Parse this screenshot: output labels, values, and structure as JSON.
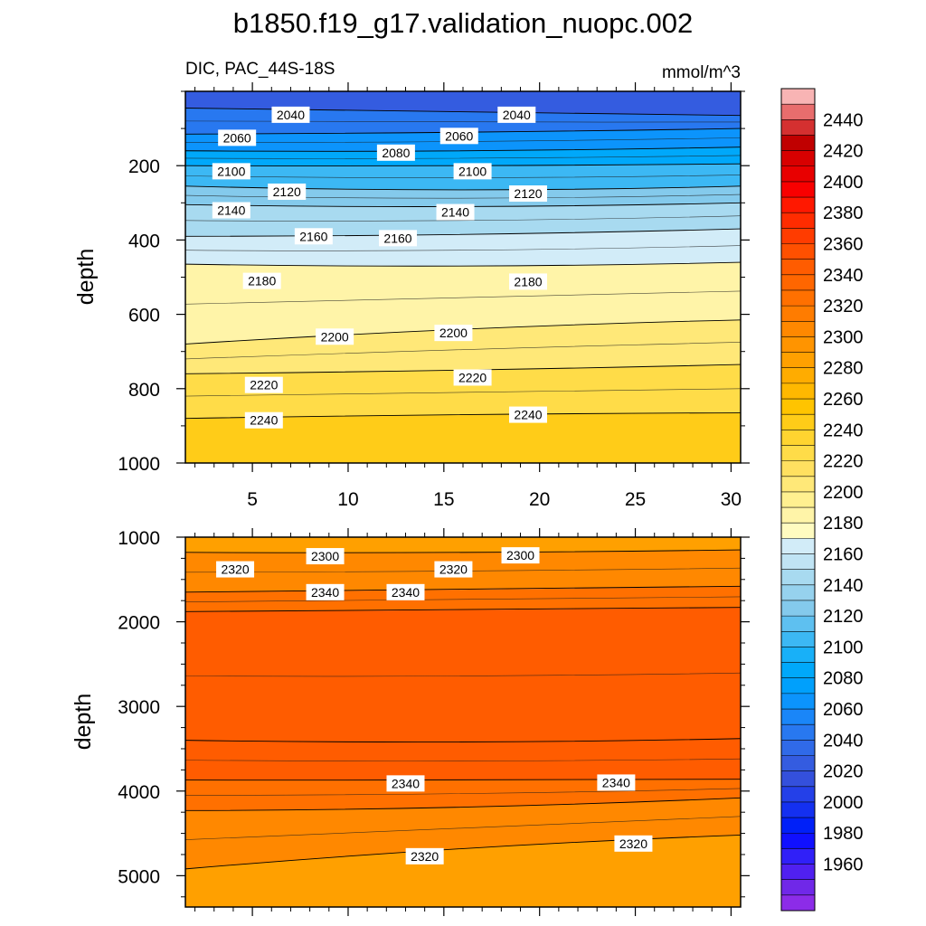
{
  "figure": {
    "title": "b1850.f19_g17.validation_nuopc.002"
  },
  "chart_data": [
    {
      "type": "contour",
      "panel": "upper",
      "title": "DIC, PAC_44S-18S",
      "units": "mmol/m^3",
      "ylabel": "depth",
      "xlabel": "",
      "xlim": [
        1.5,
        30.5
      ],
      "ylim": [
        1000,
        0
      ],
      "xticks": [
        5,
        10,
        15,
        20,
        25,
        30
      ],
      "yticks": [
        200,
        400,
        600,
        800,
        1000
      ],
      "contours": [
        {
          "level": 2040,
          "depths": [
            45,
            55,
            65
          ]
        },
        {
          "level": 2060,
          "depths": [
            115,
            110,
            100
          ]
        },
        {
          "level": 2080,
          "depths": [
            160,
            160,
            150
          ]
        },
        {
          "level": 2100,
          "depths": [
            200,
            200,
            195
          ]
        },
        {
          "level": 2120,
          "depths": [
            255,
            265,
            255
          ]
        },
        {
          "level": 2140,
          "depths": [
            305,
            310,
            300
          ]
        },
        {
          "level": 2160,
          "depths": [
            390,
            385,
            370
          ]
        },
        {
          "level": 2180,
          "depths": [
            465,
            470,
            460
          ]
        },
        {
          "level": 2200,
          "depths": [
            680,
            640,
            615
          ]
        },
        {
          "level": 2220,
          "depths": [
            760,
            750,
            735
          ]
        },
        {
          "level": 2240,
          "depths": [
            880,
            870,
            865
          ]
        }
      ],
      "labels": [
        {
          "text": "2040",
          "x": 7.0,
          "y": 63
        },
        {
          "text": "2040",
          "x": 18.8,
          "y": 63
        },
        {
          "text": "2060",
          "x": 4.2,
          "y": 125
        },
        {
          "text": "2060",
          "x": 15.8,
          "y": 120
        },
        {
          "text": "2080",
          "x": 12.5,
          "y": 165
        },
        {
          "text": "2100",
          "x": 3.9,
          "y": 215
        },
        {
          "text": "2100",
          "x": 16.5,
          "y": 215
        },
        {
          "text": "2120",
          "x": 6.8,
          "y": 270
        },
        {
          "text": "2120",
          "x": 19.4,
          "y": 275
        },
        {
          "text": "2140",
          "x": 3.9,
          "y": 320
        },
        {
          "text": "2140",
          "x": 15.6,
          "y": 325
        },
        {
          "text": "2160",
          "x": 8.2,
          "y": 390
        },
        {
          "text": "2160",
          "x": 12.6,
          "y": 395
        },
        {
          "text": "2180",
          "x": 5.5,
          "y": 510
        },
        {
          "text": "2180",
          "x": 19.4,
          "y": 512
        },
        {
          "text": "2200",
          "x": 9.3,
          "y": 660
        },
        {
          "text": "2200",
          "x": 15.5,
          "y": 650
        },
        {
          "text": "2220",
          "x": 5.6,
          "y": 790
        },
        {
          "text": "2220",
          "x": 16.5,
          "y": 770
        },
        {
          "text": "2240",
          "x": 5.6,
          "y": 885
        },
        {
          "text": "2240",
          "x": 19.4,
          "y": 870
        }
      ]
    },
    {
      "type": "contour",
      "panel": "lower",
      "title": "",
      "ylabel": "depth",
      "xlabel": "",
      "xlim": [
        1.5,
        30.5
      ],
      "ylim": [
        5370,
        1000
      ],
      "xticks": [],
      "yticks": [
        1000,
        2000,
        3000,
        4000,
        5000
      ],
      "contours": [
        {
          "level": 2300,
          "depths": [
            1180,
            1180,
            1150
          ]
        },
        {
          "level": 2320,
          "depths": [
            1650,
            1620,
            1580
          ]
        },
        {
          "level": 2340,
          "depths": [
            1880,
            1860,
            1830
          ]
        },
        {
          "level": 2360,
          "depths": [
            3400,
            3420,
            3380
          ]
        },
        {
          "level": 2340,
          "depths": [
            3870,
            3870,
            3860
          ]
        },
        {
          "level": 2320,
          "depths": [
            4230,
            4190,
            4080
          ]
        },
        {
          "level": 2300,
          "depths": [
            4920,
            4680,
            4520
          ]
        }
      ],
      "labels": [
        {
          "text": "2300",
          "x": 8.8,
          "y": 1225
        },
        {
          "text": "2300",
          "x": 19.0,
          "y": 1215
        },
        {
          "text": "2320",
          "x": 4.1,
          "y": 1380
        },
        {
          "text": "2320",
          "x": 15.5,
          "y": 1380
        },
        {
          "text": "2340",
          "x": 8.8,
          "y": 1650
        },
        {
          "text": "2340",
          "x": 13.0,
          "y": 1650
        },
        {
          "text": "2340",
          "x": 13.0,
          "y": 3910
        },
        {
          "text": "2340",
          "x": 24.0,
          "y": 3900
        },
        {
          "text": "2320",
          "x": 14.0,
          "y": 4770
        },
        {
          "text": "2320",
          "x": 24.9,
          "y": 4620
        }
      ]
    }
  ],
  "colorbar": {
    "labels": [
      "2440",
      "2420",
      "2400",
      "2380",
      "2360",
      "2340",
      "2320",
      "2300",
      "2280",
      "2260",
      "2240",
      "2220",
      "2200",
      "2180",
      "2160",
      "2140",
      "2120",
      "2100",
      "2080",
      "2060",
      "2040",
      "2020",
      "2000",
      "1980",
      "1960"
    ],
    "colors": [
      "#f8b4b4",
      "#e86d6d",
      "#d43030",
      "#c00000",
      "#d80000",
      "#e80000",
      "#f80000",
      "#ff1800",
      "#ff2c00",
      "#ff3c00",
      "#ff5000",
      "#ff5c00",
      "#ff6600",
      "#ff7000",
      "#ff7c00",
      "#ff8800",
      "#ff9400",
      "#ffa000",
      "#ffac00",
      "#ffb800",
      "#ffc400",
      "#ffcc18",
      "#ffd430",
      "#ffdc48",
      "#ffe060",
      "#ffe878",
      "#fff090",
      "#fff4a8",
      "#fffbc0",
      "#d2ecf8",
      "#c0e4f4",
      "#a8daf0",
      "#96d2ee",
      "#84caec",
      "#5ec0f0",
      "#3cb8f4",
      "#18b0f8",
      "#00a8fa",
      "#00a0fc",
      "#0c94fc",
      "#1a86f8",
      "#2878f0",
      "#306ae8",
      "#345ce0",
      "#3450dc",
      "#2440e8",
      "#1430f0",
      "#0020f8",
      "#1010ff",
      "#3020f8",
      "#5020f0",
      "#7028e8",
      "#8c2ce8"
    ]
  }
}
